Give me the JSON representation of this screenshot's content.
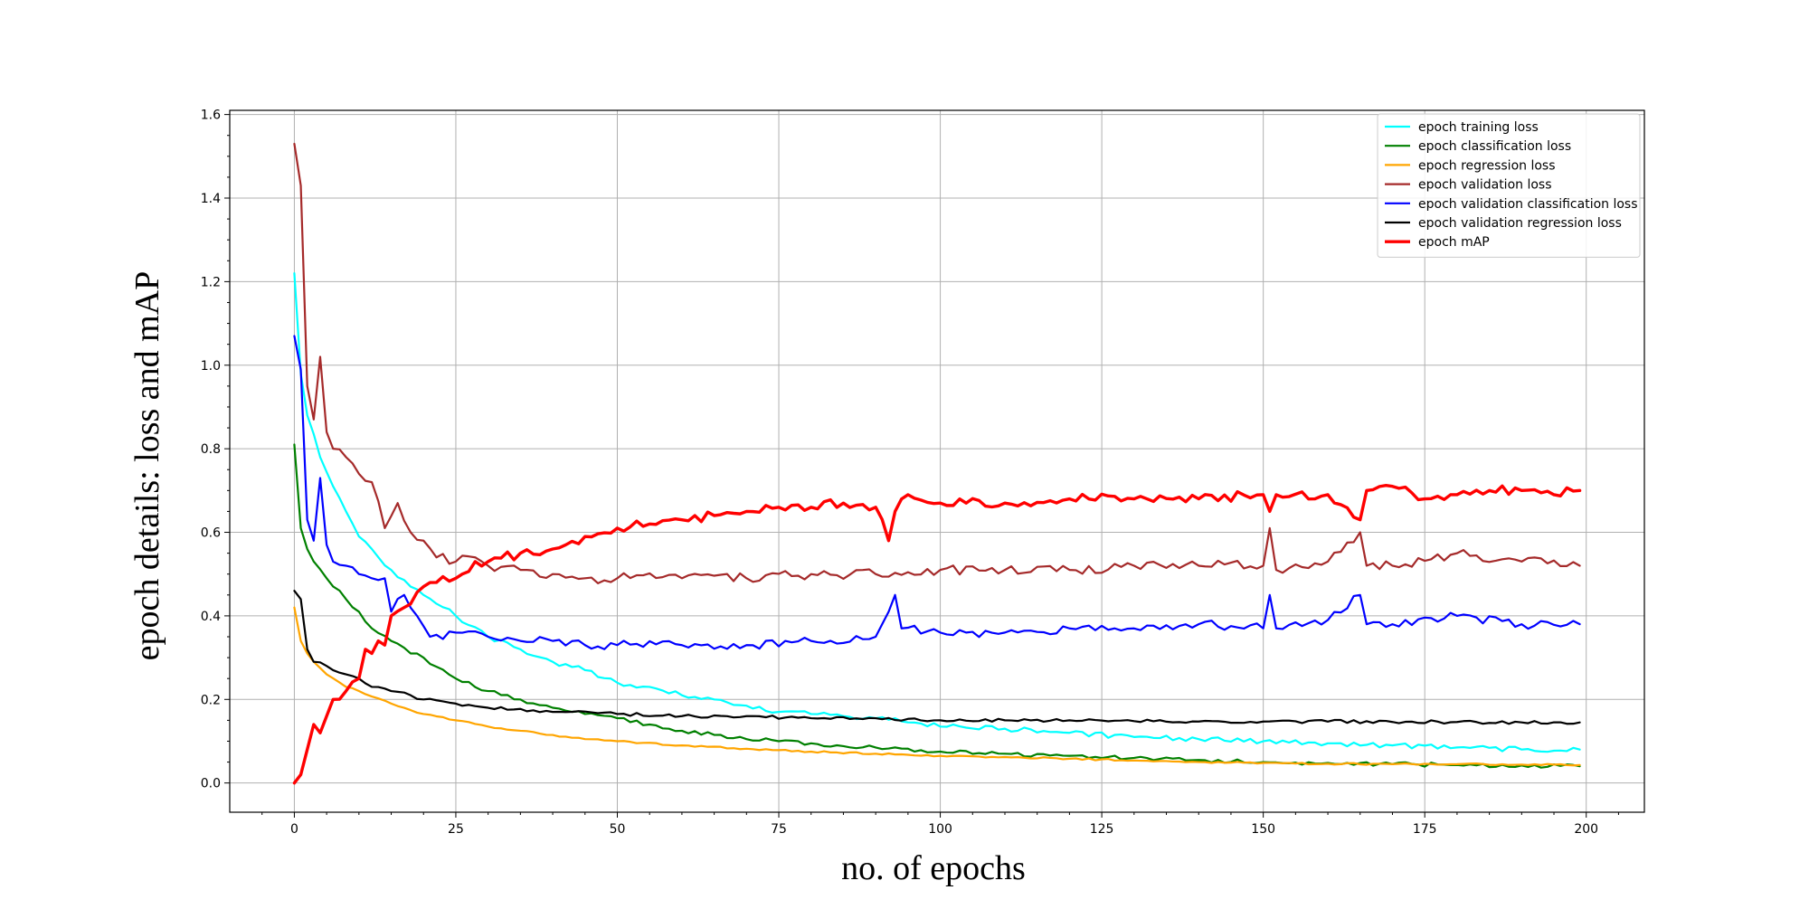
{
  "chart_data": {
    "type": "line",
    "title": "",
    "xlabel": "no. of epochs",
    "ylabel": "epoch details: loss and mAP",
    "xlim": [
      -10,
      209
    ],
    "ylim": [
      -0.07,
      1.61
    ],
    "xticks": [
      0,
      25,
      50,
      75,
      100,
      125,
      150,
      175,
      200
    ],
    "yticks": [
      0.0,
      0.2,
      0.4,
      0.6,
      0.8,
      1.0,
      1.2,
      1.4,
      1.6
    ],
    "xtick_labels": [
      "0",
      "25",
      "50",
      "75",
      "100",
      "125",
      "150",
      "175",
      "200"
    ],
    "ytick_labels": [
      "0.0",
      "0.2",
      "0.4",
      "0.6",
      "0.8",
      "1.0",
      "1.2",
      "1.4",
      "1.6"
    ],
    "grid": true,
    "legend_position": "top-right",
    "num_points": 200,
    "series": [
      {
        "name": "epoch training loss",
        "color": "#00ffff",
        "anchors": [
          [
            0,
            1.22
          ],
          [
            1,
            0.98
          ],
          [
            2,
            0.88
          ],
          [
            4,
            0.78
          ],
          [
            6,
            0.71
          ],
          [
            8,
            0.65
          ],
          [
            10,
            0.59
          ],
          [
            12,
            0.56
          ],
          [
            15,
            0.51
          ],
          [
            18,
            0.47
          ],
          [
            20,
            0.45
          ],
          [
            25,
            0.4
          ],
          [
            30,
            0.35
          ],
          [
            35,
            0.32
          ],
          [
            40,
            0.29
          ],
          [
            45,
            0.27
          ],
          [
            50,
            0.24
          ],
          [
            55,
            0.23
          ],
          [
            60,
            0.21
          ],
          [
            65,
            0.2
          ],
          [
            70,
            0.185
          ],
          [
            75,
            0.17
          ],
          [
            80,
            0.165
          ],
          [
            85,
            0.16
          ],
          [
            90,
            0.155
          ],
          [
            95,
            0.145
          ],
          [
            100,
            0.135
          ],
          [
            110,
            0.13
          ],
          [
            120,
            0.12
          ],
          [
            130,
            0.11
          ],
          [
            140,
            0.105
          ],
          [
            150,
            0.1
          ],
          [
            160,
            0.095
          ],
          [
            170,
            0.09
          ],
          [
            180,
            0.085
          ],
          [
            190,
            0.08
          ],
          [
            199,
            0.08
          ]
        ],
        "noise": 0.006,
        "phase": 1.3
      },
      {
        "name": "epoch classification loss",
        "color": "#008000",
        "anchors": [
          [
            0,
            0.81
          ],
          [
            1,
            0.61
          ],
          [
            2,
            0.56
          ],
          [
            3,
            0.53
          ],
          [
            5,
            0.49
          ],
          [
            8,
            0.44
          ],
          [
            10,
            0.41
          ],
          [
            12,
            0.37
          ],
          [
            15,
            0.34
          ],
          [
            18,
            0.31
          ],
          [
            20,
            0.3
          ],
          [
            25,
            0.25
          ],
          [
            30,
            0.22
          ],
          [
            35,
            0.2
          ],
          [
            40,
            0.18
          ],
          [
            45,
            0.165
          ],
          [
            50,
            0.155
          ],
          [
            55,
            0.14
          ],
          [
            60,
            0.125
          ],
          [
            65,
            0.115
          ],
          [
            70,
            0.105
          ],
          [
            75,
            0.1
          ],
          [
            80,
            0.095
          ],
          [
            90,
            0.085
          ],
          [
            100,
            0.075
          ],
          [
            110,
            0.07
          ],
          [
            120,
            0.065
          ],
          [
            130,
            0.06
          ],
          [
            140,
            0.055
          ],
          [
            150,
            0.05
          ],
          [
            160,
            0.048
          ],
          [
            170,
            0.045
          ],
          [
            180,
            0.043
          ],
          [
            190,
            0.042
          ],
          [
            199,
            0.04
          ]
        ],
        "noise": 0.005,
        "phase": 2.1
      },
      {
        "name": "epoch regression loss",
        "color": "#ffa500",
        "anchors": [
          [
            0,
            0.42
          ],
          [
            1,
            0.34
          ],
          [
            2,
            0.31
          ],
          [
            3,
            0.29
          ],
          [
            5,
            0.26
          ],
          [
            8,
            0.23
          ],
          [
            10,
            0.22
          ],
          [
            15,
            0.19
          ],
          [
            20,
            0.165
          ],
          [
            25,
            0.15
          ],
          [
            30,
            0.135
          ],
          [
            35,
            0.125
          ],
          [
            40,
            0.115
          ],
          [
            45,
            0.105
          ],
          [
            50,
            0.1
          ],
          [
            60,
            0.09
          ],
          [
            70,
            0.082
          ],
          [
            80,
            0.075
          ],
          [
            90,
            0.07
          ],
          [
            100,
            0.065
          ],
          [
            110,
            0.062
          ],
          [
            120,
            0.058
          ],
          [
            130,
            0.054
          ],
          [
            140,
            0.05
          ],
          [
            150,
            0.048
          ],
          [
            160,
            0.046
          ],
          [
            170,
            0.045
          ],
          [
            180,
            0.045
          ],
          [
            190,
            0.044
          ],
          [
            199,
            0.043
          ]
        ],
        "noise": 0.002,
        "phase": 0.4
      },
      {
        "name": "epoch validation loss",
        "color": "#a52a2a",
        "anchors": [
          [
            0,
            1.53
          ],
          [
            1,
            1.43
          ],
          [
            2,
            0.95
          ],
          [
            3,
            0.87
          ],
          [
            4,
            1.02
          ],
          [
            5,
            0.84
          ],
          [
            6,
            0.8
          ],
          [
            8,
            0.78
          ],
          [
            10,
            0.74
          ],
          [
            12,
            0.72
          ],
          [
            14,
            0.61
          ],
          [
            16,
            0.67
          ],
          [
            18,
            0.6
          ],
          [
            20,
            0.58
          ],
          [
            22,
            0.54
          ],
          [
            25,
            0.53
          ],
          [
            28,
            0.54
          ],
          [
            30,
            0.52
          ],
          [
            35,
            0.51
          ],
          [
            40,
            0.5
          ],
          [
            45,
            0.49
          ],
          [
            50,
            0.49
          ],
          [
            60,
            0.49
          ],
          [
            70,
            0.49
          ],
          [
            80,
            0.5
          ],
          [
            90,
            0.5
          ],
          [
            100,
            0.51
          ],
          [
            110,
            0.51
          ],
          [
            120,
            0.51
          ],
          [
            130,
            0.52
          ],
          [
            140,
            0.52
          ],
          [
            150,
            0.52
          ],
          [
            151,
            0.61
          ],
          [
            152,
            0.51
          ],
          [
            160,
            0.53
          ],
          [
            165,
            0.6
          ],
          [
            166,
            0.52
          ],
          [
            170,
            0.52
          ],
          [
            180,
            0.55
          ],
          [
            190,
            0.53
          ],
          [
            199,
            0.52
          ]
        ],
        "noise": 0.012,
        "phase": 0.9
      },
      {
        "name": "epoch validation classification loss",
        "color": "#0000ff",
        "anchors": [
          [
            0,
            1.07
          ],
          [
            1,
            0.99
          ],
          [
            2,
            0.63
          ],
          [
            3,
            0.58
          ],
          [
            4,
            0.73
          ],
          [
            5,
            0.57
          ],
          [
            6,
            0.53
          ],
          [
            8,
            0.52
          ],
          [
            10,
            0.5
          ],
          [
            12,
            0.49
          ],
          [
            14,
            0.49
          ],
          [
            15,
            0.41
          ],
          [
            17,
            0.45
          ],
          [
            19,
            0.4
          ],
          [
            21,
            0.35
          ],
          [
            25,
            0.36
          ],
          [
            30,
            0.35
          ],
          [
            35,
            0.34
          ],
          [
            40,
            0.34
          ],
          [
            45,
            0.33
          ],
          [
            50,
            0.33
          ],
          [
            60,
            0.33
          ],
          [
            70,
            0.33
          ],
          [
            80,
            0.34
          ],
          [
            90,
            0.35
          ],
          [
            93,
            0.45
          ],
          [
            94,
            0.37
          ],
          [
            100,
            0.36
          ],
          [
            110,
            0.36
          ],
          [
            120,
            0.37
          ],
          [
            130,
            0.37
          ],
          [
            140,
            0.38
          ],
          [
            150,
            0.37
          ],
          [
            151,
            0.45
          ],
          [
            152,
            0.37
          ],
          [
            160,
            0.39
          ],
          [
            165,
            0.45
          ],
          [
            166,
            0.38
          ],
          [
            170,
            0.38
          ],
          [
            180,
            0.4
          ],
          [
            190,
            0.38
          ],
          [
            199,
            0.38
          ]
        ],
        "noise": 0.011,
        "phase": 1.7
      },
      {
        "name": "epoch validation regression loss",
        "color": "#000000",
        "anchors": [
          [
            0,
            0.46
          ],
          [
            1,
            0.44
          ],
          [
            2,
            0.32
          ],
          [
            3,
            0.29
          ],
          [
            5,
            0.28
          ],
          [
            6,
            0.27
          ],
          [
            8,
            0.26
          ],
          [
            10,
            0.25
          ],
          [
            12,
            0.23
          ],
          [
            15,
            0.22
          ],
          [
            18,
            0.21
          ],
          [
            20,
            0.2
          ],
          [
            25,
            0.19
          ],
          [
            30,
            0.18
          ],
          [
            40,
            0.17
          ],
          [
            50,
            0.165
          ],
          [
            60,
            0.16
          ],
          [
            70,
            0.16
          ],
          [
            80,
            0.155
          ],
          [
            90,
            0.155
          ],
          [
            100,
            0.15
          ],
          [
            110,
            0.15
          ],
          [
            120,
            0.15
          ],
          [
            130,
            0.148
          ],
          [
            140,
            0.147
          ],
          [
            150,
            0.147
          ],
          [
            160,
            0.147
          ],
          [
            170,
            0.146
          ],
          [
            180,
            0.146
          ],
          [
            190,
            0.145
          ],
          [
            199,
            0.145
          ]
        ],
        "noise": 0.004,
        "phase": 2.6
      },
      {
        "name": "epoch mAP",
        "color": "#ff0000",
        "anchors": [
          [
            0,
            0.0
          ],
          [
            1,
            0.02
          ],
          [
            2,
            0.08
          ],
          [
            3,
            0.14
          ],
          [
            4,
            0.12
          ],
          [
            5,
            0.16
          ],
          [
            6,
            0.2
          ],
          [
            8,
            0.22
          ],
          [
            10,
            0.25
          ],
          [
            11,
            0.32
          ],
          [
            12,
            0.31
          ],
          [
            13,
            0.34
          ],
          [
            14,
            0.33
          ],
          [
            15,
            0.4
          ],
          [
            17,
            0.42
          ],
          [
            20,
            0.47
          ],
          [
            22,
            0.48
          ],
          [
            25,
            0.49
          ],
          [
            26,
            0.5
          ],
          [
            28,
            0.53
          ],
          [
            30,
            0.53
          ],
          [
            35,
            0.55
          ],
          [
            40,
            0.56
          ],
          [
            45,
            0.59
          ],
          [
            50,
            0.61
          ],
          [
            55,
            0.62
          ],
          [
            60,
            0.63
          ],
          [
            65,
            0.64
          ],
          [
            70,
            0.65
          ],
          [
            75,
            0.66
          ],
          [
            80,
            0.66
          ],
          [
            85,
            0.67
          ],
          [
            90,
            0.66
          ],
          [
            92,
            0.58
          ],
          [
            93,
            0.65
          ],
          [
            95,
            0.69
          ],
          [
            100,
            0.67
          ],
          [
            110,
            0.67
          ],
          [
            120,
            0.68
          ],
          [
            130,
            0.68
          ],
          [
            140,
            0.68
          ],
          [
            150,
            0.69
          ],
          [
            151,
            0.65
          ],
          [
            152,
            0.69
          ],
          [
            160,
            0.69
          ],
          [
            165,
            0.63
          ],
          [
            166,
            0.7
          ],
          [
            170,
            0.71
          ],
          [
            175,
            0.68
          ],
          [
            180,
            0.69
          ],
          [
            185,
            0.7
          ],
          [
            190,
            0.7
          ],
          [
            195,
            0.69
          ],
          [
            199,
            0.7
          ]
        ],
        "noise": 0.012,
        "phase": 0.2
      }
    ]
  }
}
